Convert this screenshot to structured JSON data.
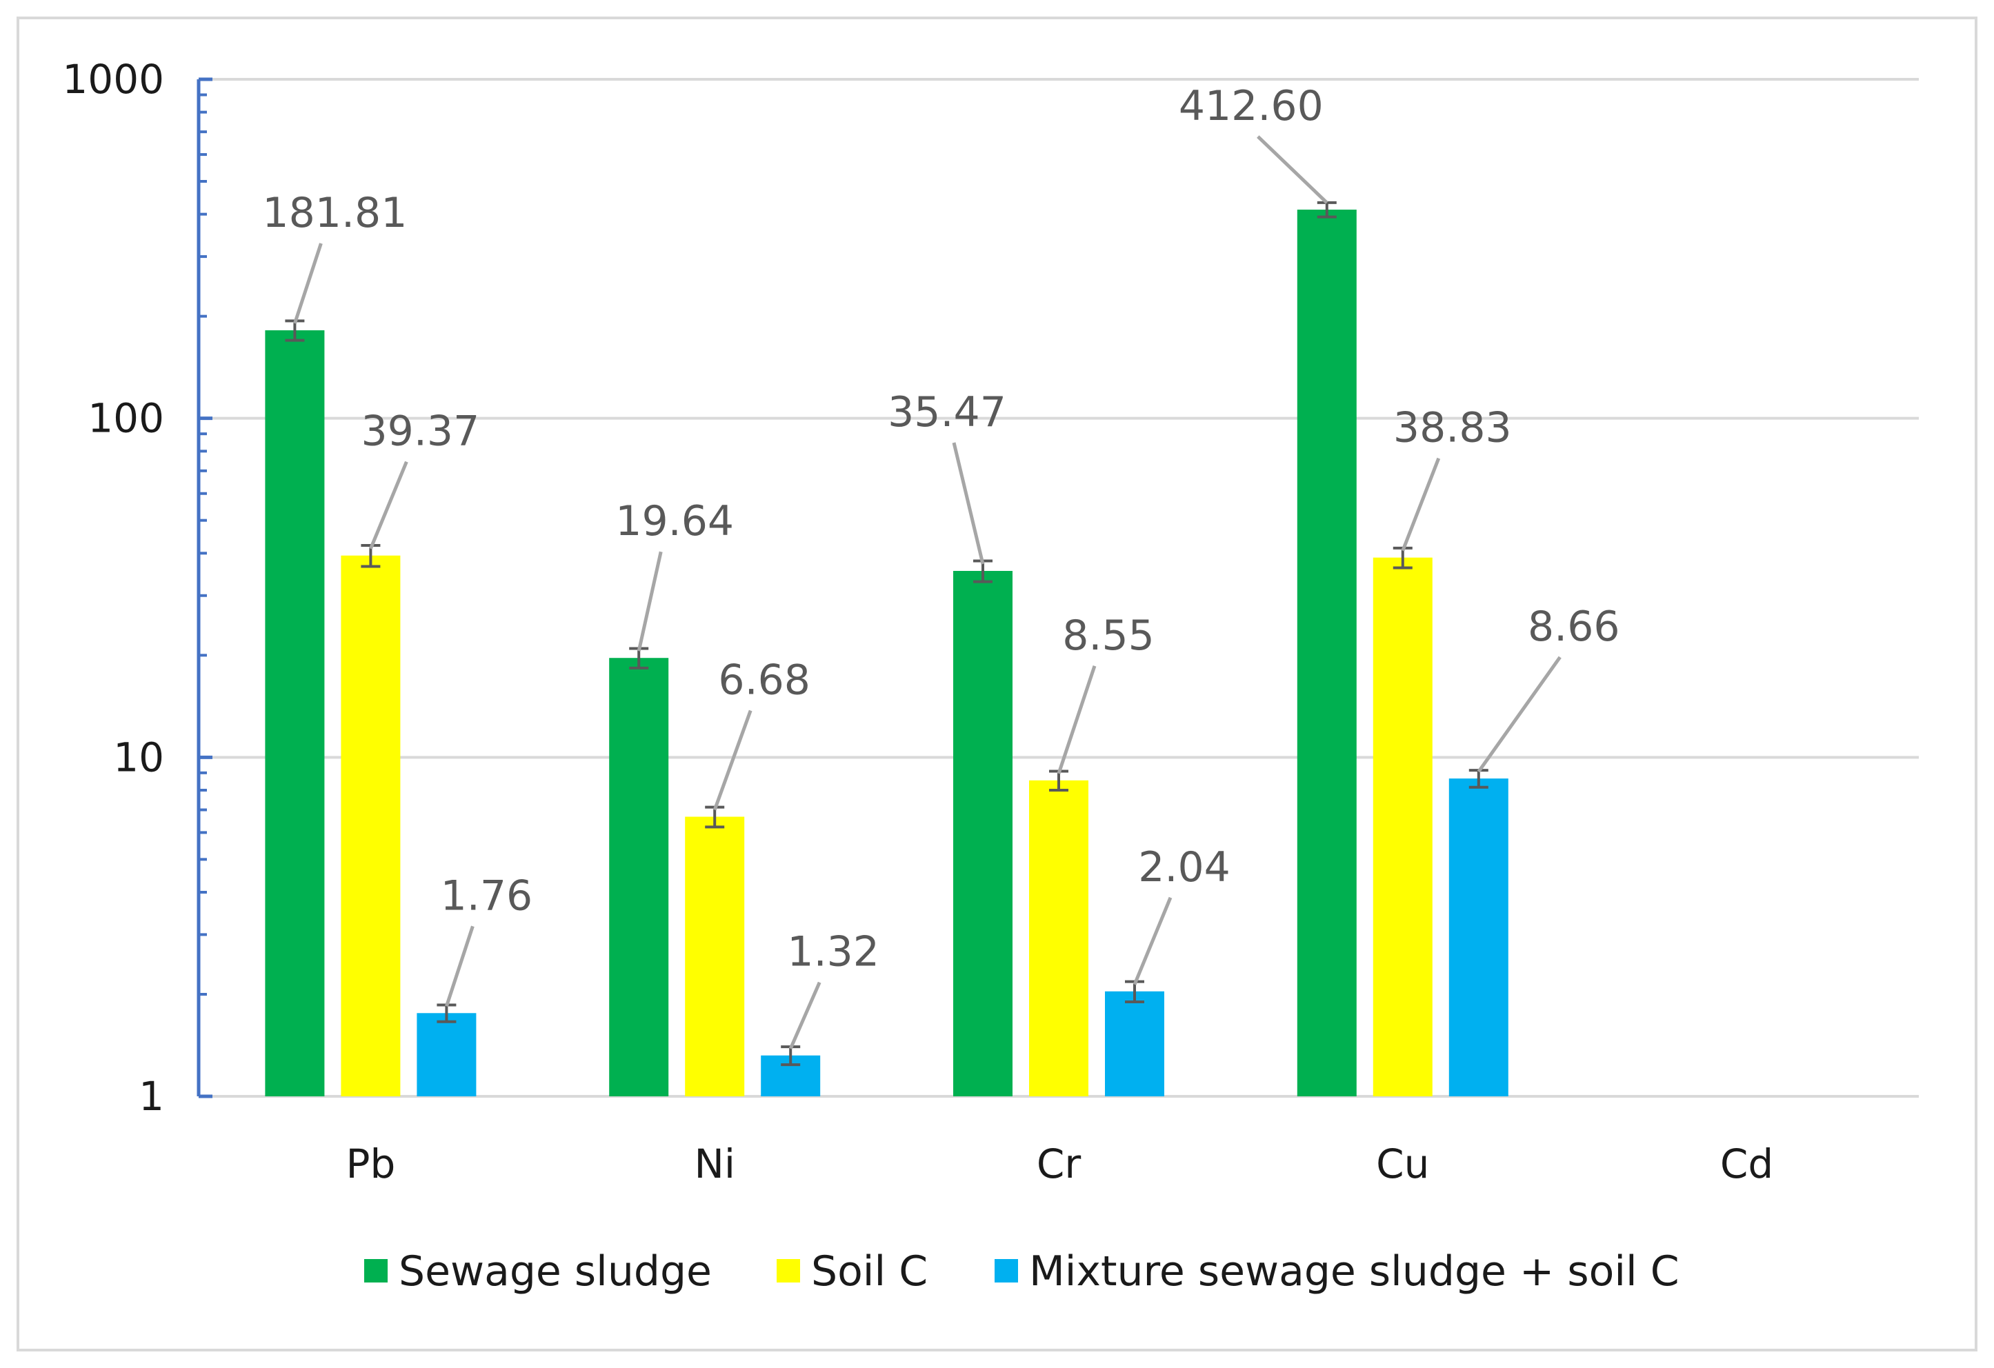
{
  "chart_data": {
    "type": "bar",
    "title": "",
    "xlabel": "",
    "ylabel": "",
    "yscale": "log",
    "ylim": [
      1,
      1000
    ],
    "yticks": [
      1,
      10,
      100,
      1000
    ],
    "yticklabels": [
      "1",
      "10",
      "100",
      "1000"
    ],
    "grid": true,
    "legend_position": "bottom",
    "categories": [
      "Pb",
      "Ni",
      "Cr",
      "Cu",
      "Cd"
    ],
    "series": [
      {
        "name": "Sewage sludge",
        "color": "#00b050",
        "values": [
          181.81,
          19.64,
          35.47,
          412.6,
          null
        ],
        "labels": [
          "181.81",
          "19.64",
          "35.47",
          "412.60",
          null
        ],
        "errors": [
          12,
          1.3,
          2.5,
          20,
          null
        ]
      },
      {
        "name": "Soil C",
        "color": "#ffff00",
        "values": [
          39.37,
          6.68,
          8.55,
          38.83,
          null
        ],
        "labels": [
          "39.37",
          "6.68",
          "8.55",
          "38.83",
          null
        ],
        "errors": [
          2.8,
          0.45,
          0.55,
          2.6,
          null
        ]
      },
      {
        "name": "Mixture sewage sludge + soil C",
        "color": "#00b0f0",
        "values": [
          1.76,
          1.32,
          2.04,
          8.66,
          null
        ],
        "labels": [
          "1.76",
          "1.32",
          "2.04",
          "8.66",
          null
        ],
        "errors": [
          0.1,
          0.08,
          0.14,
          0.5,
          null
        ]
      }
    ],
    "colors": {
      "gridline": "#d9d9d9",
      "axis": "#4472c4",
      "leader": "#a6a6a6",
      "errorbar": "#595959"
    }
  }
}
